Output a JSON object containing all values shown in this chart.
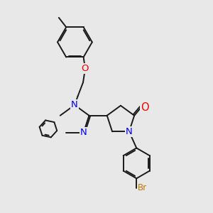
{
  "background_color": "#e8e8e8",
  "bond_color": "#1a1a1a",
  "n_color": "#0000ee",
  "o_color": "#ee0000",
  "br_color": "#bb7700",
  "bond_width": 1.4,
  "font_size_atom": 8.5,
  "fig_w": 3.0,
  "fig_h": 3.0,
  "dpi": 100,
  "xlim": [
    0,
    10
  ],
  "ylim": [
    0,
    10
  ]
}
